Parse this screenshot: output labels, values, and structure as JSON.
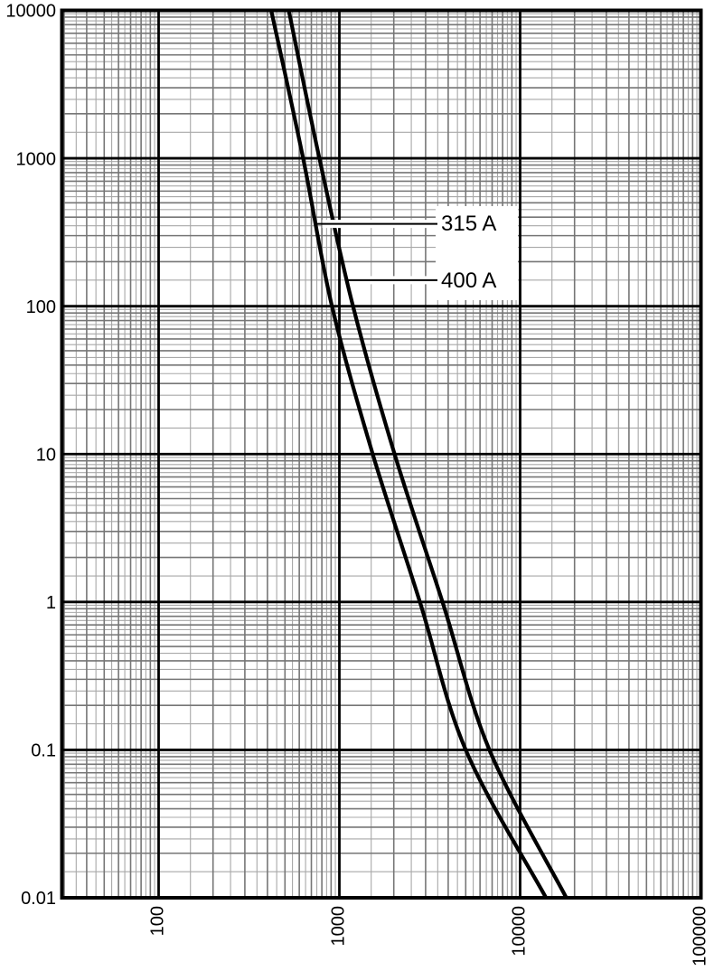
{
  "chart_data": {
    "type": "line",
    "title": "",
    "description": "Time-current characteristic curves (log-log) for 315 A and 400 A fuses",
    "x_axis": {
      "label": "",
      "scale": "log",
      "min": 30,
      "max": 100000,
      "ticks": [
        "100",
        "1000",
        "10000",
        "100000"
      ],
      "tick_rotation_deg": -90
    },
    "y_axis": {
      "label": "",
      "scale": "log",
      "min": 0.01,
      "max": 10000,
      "ticks": [
        "10000",
        "1000",
        "100",
        "10",
        "1",
        "0.1",
        "0.01"
      ]
    },
    "grid": {
      "major": true,
      "minor": true,
      "minor_half_steps": true
    },
    "legend_position": "none",
    "series": [
      {
        "name": "315 A",
        "points_current_A_time_s": [
          [
            420,
            10000
          ],
          [
            630,
            1000
          ],
          [
            910,
            100
          ],
          [
            1530,
            10
          ],
          [
            2790,
            1
          ],
          [
            5000,
            0.1
          ],
          [
            13900,
            0.01
          ]
        ]
      },
      {
        "name": "400 A",
        "points_current_A_time_s": [
          [
            525,
            10000
          ],
          [
            775,
            1000
          ],
          [
            1190,
            100
          ],
          [
            2020,
            10
          ],
          [
            3720,
            1
          ],
          [
            6760,
            0.1
          ],
          [
            18000,
            0.01
          ]
        ]
      }
    ],
    "annotations": [
      {
        "label": "315 A",
        "series": 0,
        "at_time_s": 360
      },
      {
        "label": "400 A",
        "series": 1,
        "at_time_s": 150
      }
    ],
    "colors": {
      "background": "#ffffff",
      "curve": "#000000",
      "grid_major": "#000000",
      "grid_minor": "#767676",
      "grid_half": "#a8a8a8",
      "border": "#000000",
      "text": "#000000",
      "callout_box": "#ffffff"
    }
  }
}
